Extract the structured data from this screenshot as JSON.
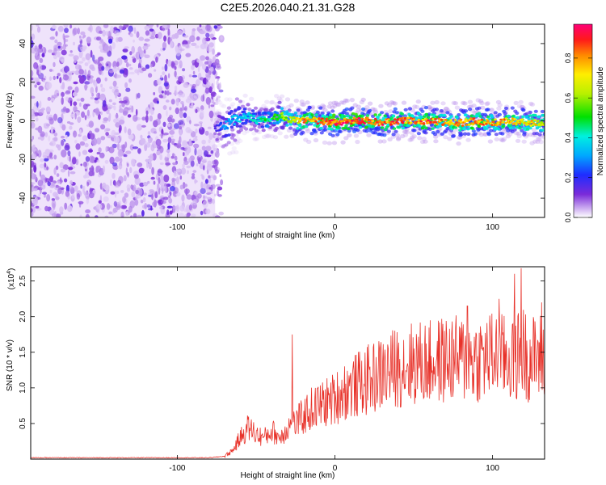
{
  "title": "C2E5.2026.040.21.31.G28",
  "chart_data": [
    {
      "type": "heatmap",
      "xlabel": "Height of straight line (km)",
      "ylabel": "Frequency (Hz)",
      "xlim": [
        -193,
        133
      ],
      "ylim": [
        -50,
        50
      ],
      "xticks": [
        -100,
        0,
        100
      ],
      "yticks": [
        -40,
        -20,
        0,
        20,
        40
      ],
      "colorbar": {
        "label": "Normalized spectral amplitude",
        "range": [
          0,
          0.97
        ],
        "ticks": [
          0.0,
          0.2,
          0.4,
          0.6,
          0.8
        ]
      },
      "noise_region_x": [
        -193,
        -76
      ],
      "signal_track": {
        "x": [
          -76,
          -70,
          -65,
          -60,
          -55,
          -50,
          -45,
          -40,
          -35,
          -30,
          -25,
          -20,
          -10,
          0,
          10,
          20,
          30,
          40,
          50,
          60,
          70,
          80,
          90,
          100,
          110,
          120,
          133
        ],
        "y_hz": [
          -4,
          -2,
          0,
          2,
          3,
          0,
          1,
          1,
          3,
          1,
          0,
          0,
          0,
          -1,
          0,
          0,
          -1,
          0,
          0,
          0,
          -1,
          -1,
          0,
          -1,
          0,
          -1,
          -1
        ],
        "amplitude": [
          0.15,
          0.3,
          0.35,
          0.35,
          0.4,
          0.4,
          0.45,
          0.5,
          0.55,
          0.65,
          0.75,
          0.8,
          0.85,
          0.9,
          0.9,
          0.9,
          0.85,
          0.85,
          0.8,
          0.85,
          0.8,
          0.8,
          0.85,
          0.8,
          0.8,
          0.75,
          0.7
        ]
      },
      "grid": false
    },
    {
      "type": "line",
      "xlabel": "Height of straight line (km)",
      "ylabel": "SNR (10 * v/v)",
      "ymultiplier": "(x10",
      "ymultiplier_exp": "4",
      "ymultiplier_close": ")",
      "xlim": [
        -193,
        133
      ],
      "ylim": [
        0,
        2.7
      ],
      "xticks": [
        -100,
        0,
        100
      ],
      "yticks": [
        0.5,
        1.0,
        1.5,
        2.0,
        2.5
      ],
      "series": [
        {
          "color": "#e8322a",
          "x": [
            -193,
            -180,
            -160,
            -140,
            -120,
            -100,
            -90,
            -80,
            -70,
            -65,
            -60,
            -55,
            -50,
            -45,
            -40,
            -35,
            -30,
            -25,
            -20,
            -15,
            -10,
            -5,
            0,
            5,
            10,
            20,
            30,
            40,
            50,
            60,
            70,
            80,
            90,
            100,
            110,
            115,
            120,
            125,
            133
          ],
          "y": [
            0.02,
            0.02,
            0.02,
            0.02,
            0.02,
            0.02,
            0.02,
            0.02,
            0.04,
            0.12,
            0.3,
            0.45,
            0.35,
            0.3,
            0.4,
            0.3,
            0.45,
            0.5,
            0.6,
            0.7,
            0.75,
            0.8,
            0.85,
            0.95,
            1.0,
            1.1,
            1.2,
            1.3,
            1.35,
            1.35,
            1.4,
            1.4,
            1.4,
            1.45,
            1.4,
            1.45,
            1.5,
            1.4,
            1.45
          ],
          "peaks": [
            {
              "x": -27,
              "y": 1.75
            },
            {
              "x": 84,
              "y": 2.15
            },
            {
              "x": 104,
              "y": 2.25
            },
            {
              "x": 114,
              "y": 2.6
            },
            {
              "x": 118,
              "y": 2.68
            },
            {
              "x": 131,
              "y": 2.2
            }
          ]
        }
      ],
      "grid": false
    }
  ]
}
